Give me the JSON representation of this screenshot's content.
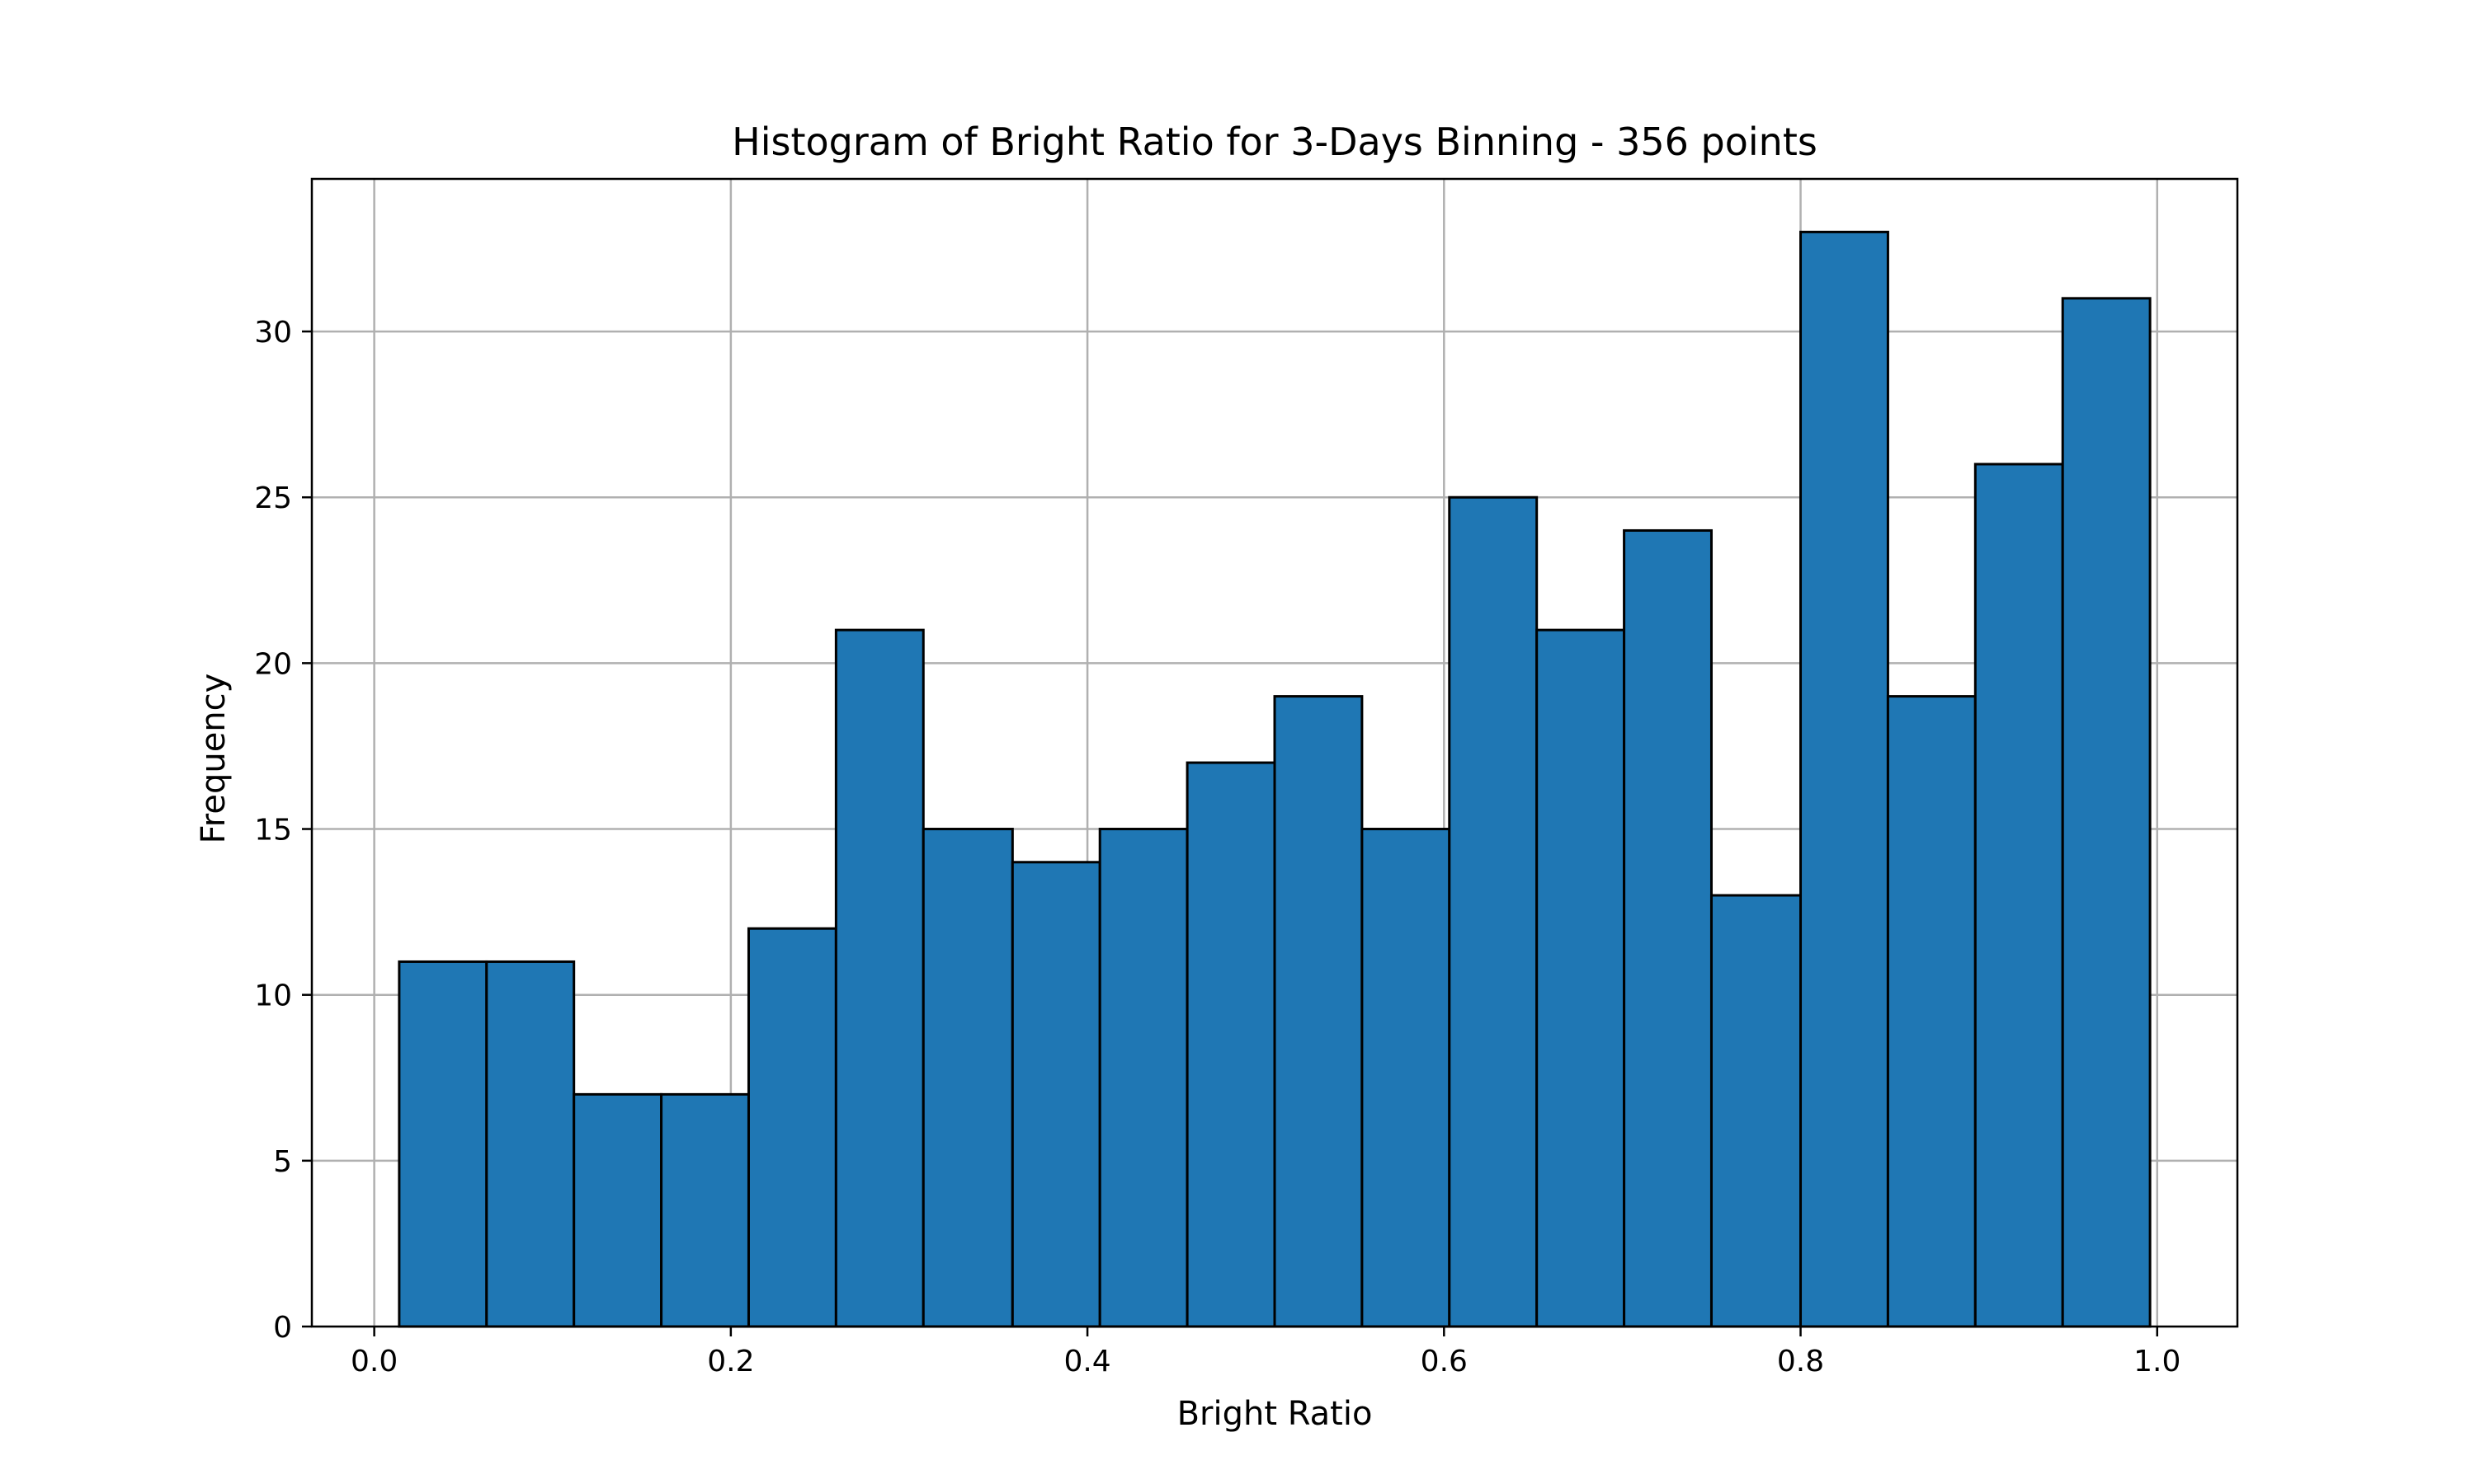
{
  "chart_data": {
    "type": "bar",
    "title": "Histogram of Bright Ratio for 3-Days Binning - 356 points",
    "xlabel": "Bright Ratio",
    "ylabel": "Frequency",
    "xlim": [
      -0.035,
      1.045
    ],
    "ylim": [
      0,
      34.6
    ],
    "x_ticks": [
      "0.0",
      "0.2",
      "0.4",
      "0.6",
      "0.8",
      "1.0"
    ],
    "y_ticks": [
      "0",
      "5",
      "10",
      "15",
      "20",
      "25",
      "30"
    ],
    "grid": true,
    "bar_color": "#1f77b4",
    "edge_color": "#000000",
    "bins": [
      {
        "start": 0.014,
        "end": 0.063,
        "count": 11
      },
      {
        "start": 0.063,
        "end": 0.112,
        "count": 11
      },
      {
        "start": 0.112,
        "end": 0.161,
        "count": 7
      },
      {
        "start": 0.161,
        "end": 0.21,
        "count": 7
      },
      {
        "start": 0.21,
        "end": 0.259,
        "count": 12
      },
      {
        "start": 0.259,
        "end": 0.308,
        "count": 21
      },
      {
        "start": 0.308,
        "end": 0.358,
        "count": 15
      },
      {
        "start": 0.358,
        "end": 0.407,
        "count": 14
      },
      {
        "start": 0.407,
        "end": 0.456,
        "count": 15
      },
      {
        "start": 0.456,
        "end": 0.505,
        "count": 17
      },
      {
        "start": 0.505,
        "end": 0.554,
        "count": 19
      },
      {
        "start": 0.554,
        "end": 0.603,
        "count": 15
      },
      {
        "start": 0.603,
        "end": 0.652,
        "count": 25
      },
      {
        "start": 0.652,
        "end": 0.701,
        "count": 21
      },
      {
        "start": 0.701,
        "end": 0.75,
        "count": 24
      },
      {
        "start": 0.75,
        "end": 0.8,
        "count": 13
      },
      {
        "start": 0.8,
        "end": 0.849,
        "count": 33
      },
      {
        "start": 0.849,
        "end": 0.898,
        "count": 19
      },
      {
        "start": 0.898,
        "end": 0.947,
        "count": 26
      },
      {
        "start": 0.947,
        "end": 0.996,
        "count": 31
      }
    ]
  }
}
